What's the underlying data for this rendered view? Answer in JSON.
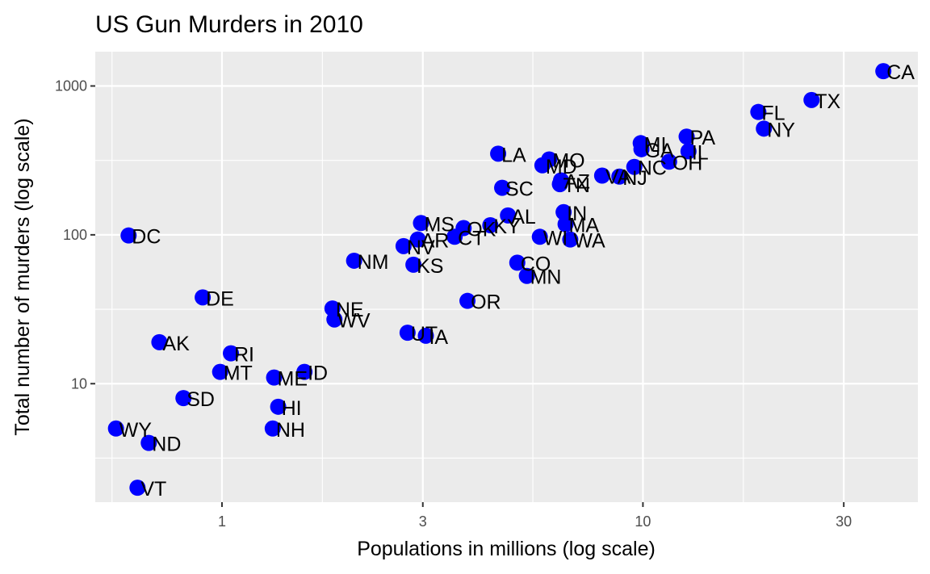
{
  "chart_data": {
    "type": "scatter",
    "title": "US Gun Murders in 2010",
    "xlabel": "Populations in millions (log scale)",
    "ylabel": "Total number of murders (log scale)",
    "x_scale": "log10",
    "y_scale": "log10",
    "xlim": [
      0.5,
      45
    ],
    "ylim": [
      1.6,
      1700
    ],
    "x_ticks": [
      1,
      3,
      10,
      30
    ],
    "x_tick_labels": [
      "1",
      "3",
      "10",
      "30"
    ],
    "y_ticks": [
      10,
      100,
      1000
    ],
    "y_tick_labels": [
      "10",
      "100",
      "1000"
    ],
    "x_minor_ticks": [
      0.548,
      1.732,
      5.477,
      17.32
    ],
    "y_minor_ticks": [
      3.162,
      31.62,
      316.2
    ],
    "grid": true,
    "panel_background": "#ebebeb",
    "grid_color": "#ffffff",
    "point_color": "#0000ff",
    "points": [
      {
        "label": "AL",
        "x": 4.78,
        "y": 135
      },
      {
        "label": "AK",
        "x": 0.71,
        "y": 19
      },
      {
        "label": "AZ",
        "x": 6.39,
        "y": 232
      },
      {
        "label": "AR",
        "x": 2.92,
        "y": 93
      },
      {
        "label": "CA",
        "x": 37.25,
        "y": 1257
      },
      {
        "label": "CO",
        "x": 5.03,
        "y": 65
      },
      {
        "label": "CT",
        "x": 3.57,
        "y": 97
      },
      {
        "label": "DE",
        "x": 0.9,
        "y": 38
      },
      {
        "label": "DC",
        "x": 0.6,
        "y": 99
      },
      {
        "label": "FL",
        "x": 18.8,
        "y": 669
      },
      {
        "label": "GA",
        "x": 9.92,
        "y": 376
      },
      {
        "label": "HI",
        "x": 1.36,
        "y": 7
      },
      {
        "label": "ID",
        "x": 1.57,
        "y": 12
      },
      {
        "label": "IL",
        "x": 12.83,
        "y": 364
      },
      {
        "label": "IN",
        "x": 6.48,
        "y": 142
      },
      {
        "label": "IA",
        "x": 3.05,
        "y": 21
      },
      {
        "label": "KS",
        "x": 2.85,
        "y": 63
      },
      {
        "label": "KY",
        "x": 4.34,
        "y": 116
      },
      {
        "label": "LA",
        "x": 4.53,
        "y": 351
      },
      {
        "label": "ME",
        "x": 1.33,
        "y": 11
      },
      {
        "label": "MD",
        "x": 5.77,
        "y": 293
      },
      {
        "label": "MA",
        "x": 6.55,
        "y": 118
      },
      {
        "label": "MI",
        "x": 9.88,
        "y": 413
      },
      {
        "label": "MN",
        "x": 5.3,
        "y": 53
      },
      {
        "label": "MS",
        "x": 2.97,
        "y": 120
      },
      {
        "label": "MO",
        "x": 5.99,
        "y": 321
      },
      {
        "label": "MT",
        "x": 0.99,
        "y": 12
      },
      {
        "label": "NE",
        "x": 1.83,
        "y": 32
      },
      {
        "label": "NV",
        "x": 2.7,
        "y": 84
      },
      {
        "label": "NH",
        "x": 1.32,
        "y": 5
      },
      {
        "label": "NJ",
        "x": 8.79,
        "y": 246
      },
      {
        "label": "NM",
        "x": 2.06,
        "y": 67
      },
      {
        "label": "NY",
        "x": 19.38,
        "y": 517
      },
      {
        "label": "NC",
        "x": 9.54,
        "y": 286
      },
      {
        "label": "ND",
        "x": 0.67,
        "y": 4
      },
      {
        "label": "OH",
        "x": 11.54,
        "y": 310
      },
      {
        "label": "OK",
        "x": 3.75,
        "y": 111
      },
      {
        "label": "OR",
        "x": 3.83,
        "y": 36
      },
      {
        "label": "PA",
        "x": 12.7,
        "y": 457
      },
      {
        "label": "RI",
        "x": 1.05,
        "y": 16
      },
      {
        "label": "SC",
        "x": 4.63,
        "y": 207
      },
      {
        "label": "SD",
        "x": 0.81,
        "y": 8
      },
      {
        "label": "TN",
        "x": 6.35,
        "y": 219
      },
      {
        "label": "TX",
        "x": 25.15,
        "y": 805
      },
      {
        "label": "UT",
        "x": 2.76,
        "y": 22
      },
      {
        "label": "VT",
        "x": 0.63,
        "y": 2
      },
      {
        "label": "VA",
        "x": 8.0,
        "y": 250
      },
      {
        "label": "WA",
        "x": 6.72,
        "y": 93
      },
      {
        "label": "WV",
        "x": 1.85,
        "y": 27
      },
      {
        "label": "WI",
        "x": 5.69,
        "y": 97
      },
      {
        "label": "WY",
        "x": 0.56,
        "y": 5
      }
    ]
  }
}
